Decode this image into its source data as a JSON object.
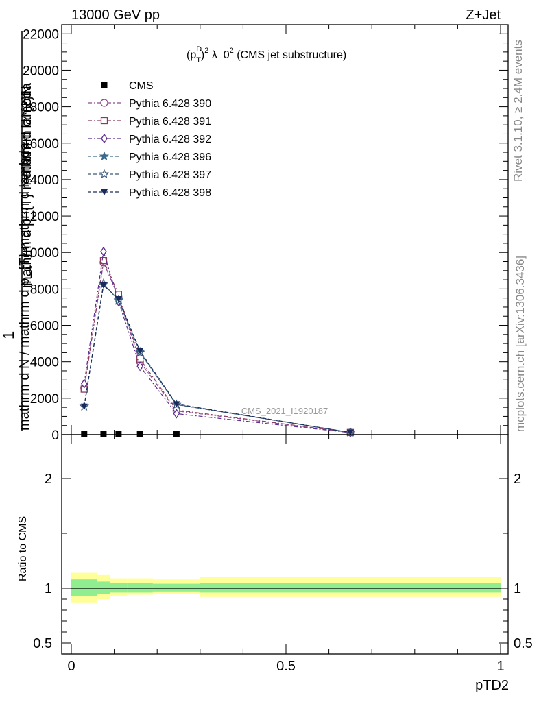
{
  "header": {
    "left": "13000 GeV pp",
    "right": "Z+Jet"
  },
  "side_labels": {
    "top": "Rivet 3.1.10, ≥ 2.4M events",
    "bottom": "mcplots.cern.ch [arXiv:1306.3436]"
  },
  "watermark": "CMS_2021_I1920187",
  "legend_title": "(p_T^D)^2 λ_0^2 (CMS jet substructure)",
  "legend_title_parts": {
    "p": "(p",
    "sup_d": "D",
    "sub_t": "T",
    "close": ")",
    "sq": "2",
    "mid": " λ_0",
    "sq2": "2",
    "tail": " (CMS jet substructure)"
  },
  "main_ylabel": {
    "one": "1",
    "numerator_top": "mathrm d^{2}N",
    "over": "mathrm d p_{T} mathrm d lambda",
    "denominator": "mathrm d N / mathrm d p_{T} mathrm d lambda"
  },
  "ratio_ylabel": "Ratio to CMS",
  "xlabel": "pTD2",
  "chart_data": [
    {
      "type": "line",
      "panel": "main",
      "xlim": [
        -0.02,
        1.02
      ],
      "ylim": [
        0,
        22500
      ],
      "x_ticks": [
        0,
        0.5,
        1
      ],
      "y_ticks": [
        0,
        2000,
        4000,
        6000,
        8000,
        10000,
        12000,
        14000,
        16000,
        18000,
        20000,
        22000
      ],
      "y_tick_labels": [
        "0",
        "2000",
        "4000",
        "6000",
        "8000",
        "10000",
        "12000",
        "14000",
        "16000",
        "18000",
        "20000",
        "22000"
      ],
      "x": [
        0.03,
        0.075,
        0.11,
        0.16,
        0.245,
        0.65
      ],
      "series": [
        {
          "name": "CMS",
          "color": "#000000",
          "marker": "square",
          "values": [
            40,
            40,
            40,
            40,
            40,
            null
          ]
        },
        {
          "name": "Pythia 6.428 390",
          "color": "#8c4a8c",
          "marker": "circle",
          "dash": "6,3,2,3",
          "values": [
            2550,
            9450,
            7550,
            4000,
            1300,
            120
          ]
        },
        {
          "name": "Pythia 6.428 391",
          "color": "#8c3a5c",
          "marker": "square-open",
          "dash": "6,3,2,3",
          "values": [
            2500,
            9550,
            7700,
            4150,
            1350,
            120
          ]
        },
        {
          "name": "Pythia 6.428 392",
          "color": "#5a2a8c",
          "marker": "diamond",
          "dash": "6,3,2,3",
          "values": [
            2800,
            10050,
            7300,
            3750,
            1150,
            110
          ]
        },
        {
          "name": "Pythia 6.428 396",
          "color": "#3a6a8c",
          "marker": "star",
          "dash": "5,3",
          "values": [
            1550,
            8250,
            7400,
            4550,
            1650,
            120
          ]
        },
        {
          "name": "Pythia 6.428 397",
          "color": "#3a5a7a",
          "marker": "star-open",
          "dash": "5,3",
          "values": [
            1550,
            8300,
            7350,
            4500,
            1650,
            120
          ]
        },
        {
          "name": "Pythia 6.428 398",
          "color": "#1a2a5c",
          "marker": "triangle-down",
          "dash": "5,3",
          "values": [
            1550,
            8200,
            7450,
            4600,
            1680,
            120
          ]
        }
      ]
    },
    {
      "type": "area",
      "panel": "ratio",
      "ylabel": "Ratio to CMS",
      "xlabel": "pTD2",
      "ylim": [
        0.4,
        2.4
      ],
      "y_ticks": [
        0.5,
        1,
        2
      ],
      "y_tick_labels": [
        "0.5",
        "1",
        "2"
      ],
      "x_ticks": [
        0,
        0.5,
        1
      ],
      "x_tick_labels": [
        "0",
        "0.5",
        "1"
      ],
      "reference": 1,
      "bins": [
        {
          "x0": 0.0,
          "x1": 0.06,
          "inner": [
            0.93,
            1.08
          ],
          "outer": [
            0.87,
            1.14
          ]
        },
        {
          "x0": 0.06,
          "x1": 0.09,
          "inner": [
            0.95,
            1.06
          ],
          "outer": [
            0.9,
            1.12
          ]
        },
        {
          "x0": 0.09,
          "x1": 0.13,
          "inner": [
            0.96,
            1.05
          ],
          "outer": [
            0.93,
            1.09
          ]
        },
        {
          "x0": 0.13,
          "x1": 0.19,
          "inner": [
            0.96,
            1.05
          ],
          "outer": [
            0.94,
            1.09
          ]
        },
        {
          "x0": 0.19,
          "x1": 0.3,
          "inner": [
            0.97,
            1.04
          ],
          "outer": [
            0.945,
            1.08
          ]
        },
        {
          "x0": 0.3,
          "x1": 1.0,
          "inner": [
            0.96,
            1.05
          ],
          "outer": [
            0.92,
            1.1
          ]
        }
      ],
      "band_colors": {
        "inner": "#90ee90",
        "outer": "#ffff99"
      }
    }
  ]
}
